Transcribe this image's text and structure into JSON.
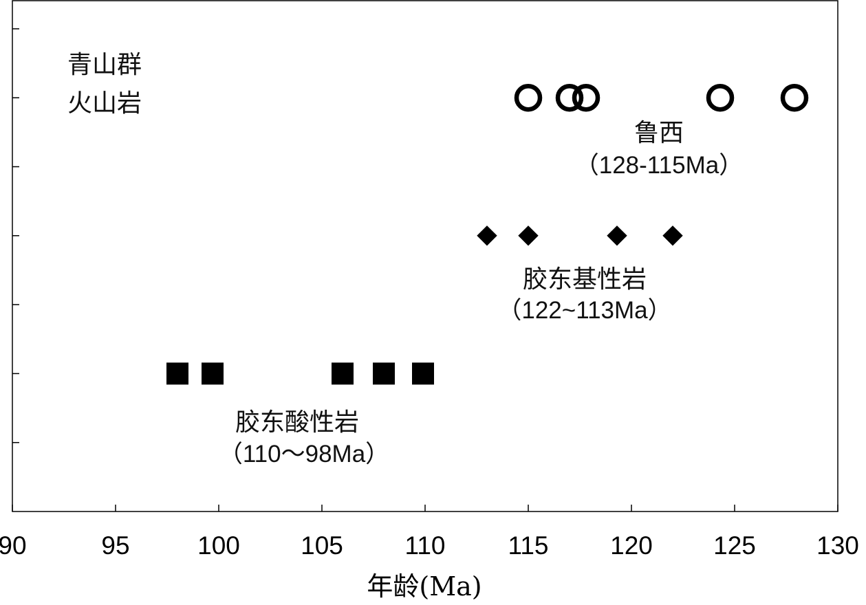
{
  "chart_data": {
    "type": "scatter",
    "xlabel": "年龄(Ma)",
    "xlim": [
      90,
      130
    ],
    "xticks": [
      90,
      95,
      100,
      105,
      110,
      115,
      120,
      125,
      130
    ],
    "y_row_count": 7,
    "grid": false,
    "series": [
      {
        "marker": "open-circle",
        "row": 6,
        "x": [
          115.0,
          117.0,
          117.8,
          124.3,
          127.9
        ],
        "annotation": [
          "鲁西",
          "（128-115Ma）"
        ]
      },
      {
        "marker": "filled-diamond",
        "row": 4,
        "x": [
          113.0,
          115.0,
          119.3,
          122.0
        ],
        "annotation": [
          "胶东基性岩",
          "（122~113Ma）"
        ]
      },
      {
        "marker": "filled-square",
        "row": 2,
        "x": [
          98.0,
          99.7,
          106.0,
          108.0,
          109.9
        ],
        "annotation": [
          "胶东酸性岩",
          "（110～98Ma）"
        ]
      }
    ],
    "corner_label": [
      "青山群",
      "火山岩"
    ]
  }
}
